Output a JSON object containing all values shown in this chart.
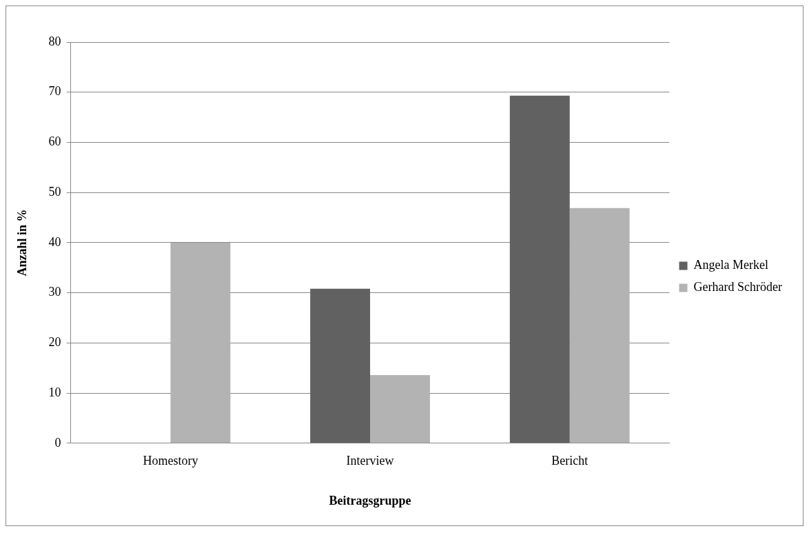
{
  "chart_data": {
    "type": "bar",
    "xlabel": "Beitragsgruppe",
    "ylabel": "Anzahl in %",
    "categories": [
      "Homestory",
      "Interview",
      "Bericht"
    ],
    "series": [
      {
        "name": "Angela Merkel",
        "color": "#616161",
        "values": [
          0,
          30.8,
          69.3
        ]
      },
      {
        "name": "Gerhard Schröder",
        "color": "#b3b3b3",
        "values": [
          40,
          13.6,
          46.9
        ]
      }
    ],
    "ylim": [
      0,
      80
    ],
    "yticks": [
      0,
      10,
      20,
      30,
      40,
      50,
      60,
      70,
      80
    ],
    "grid": "y",
    "legend": "right"
  }
}
